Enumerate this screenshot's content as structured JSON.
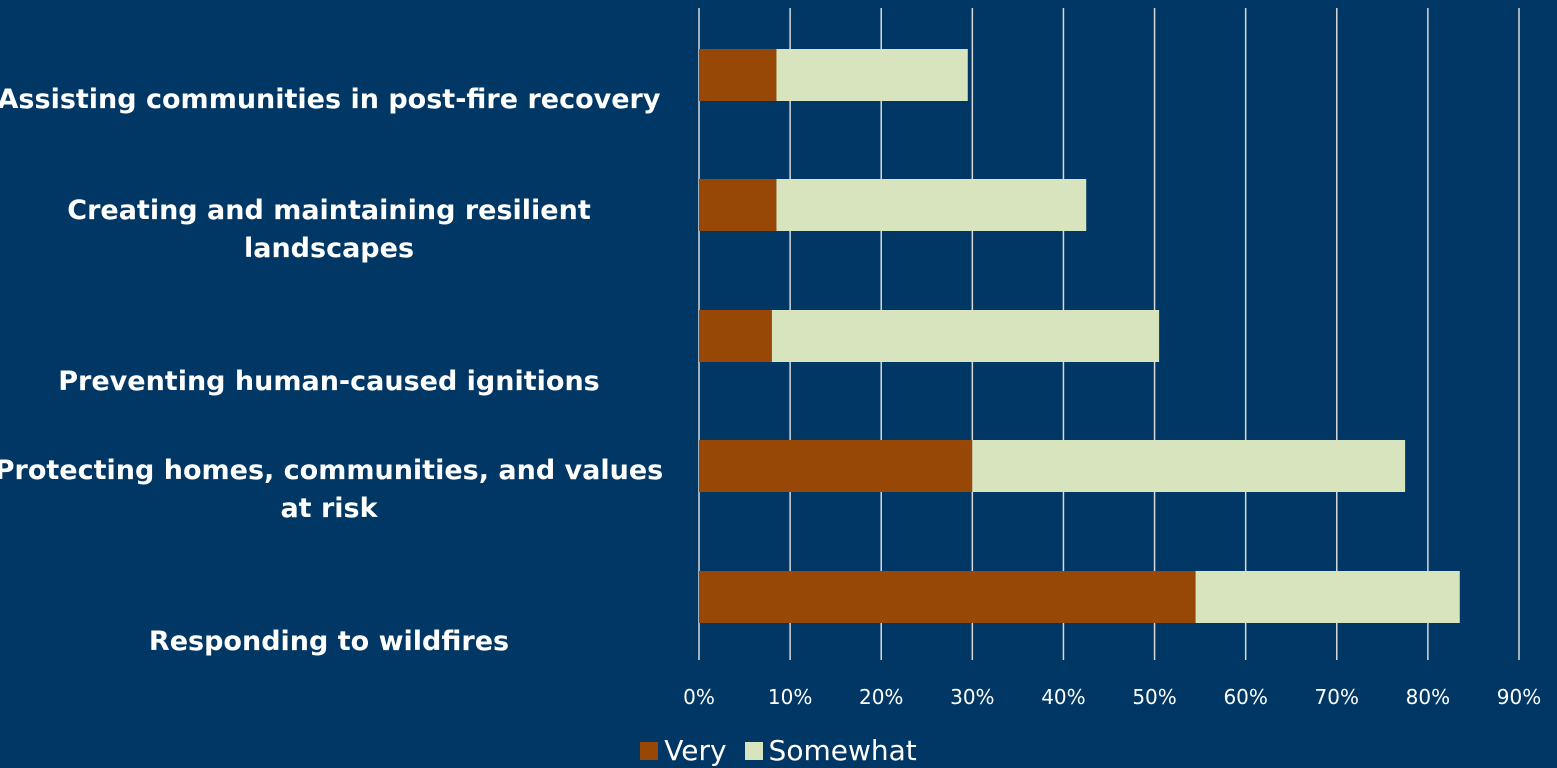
{
  "chart_data": {
    "type": "bar",
    "orientation": "horizontal",
    "stacked": true,
    "categories": [
      "Assisting communities in post-fire recovery",
      "Creating and maintaining resilient landscapes",
      "Preventing human-caused ignitions",
      "Protecting homes, communities, and values at risk",
      "Responding to wildfires"
    ],
    "series": [
      {
        "name": "Very",
        "color": "#974706",
        "values": [
          8.5,
          8.5,
          8,
          30,
          54.5
        ]
      },
      {
        "name": "Somewhat",
        "color": "#d7e4bd",
        "values": [
          21,
          34,
          42.5,
          47.5,
          29
        ]
      }
    ],
    "xlim": [
      0,
      90
    ],
    "x_ticks": [
      "0%",
      "10%",
      "20%",
      "30%",
      "40%",
      "50%",
      "60%",
      "70%",
      "80%",
      "90%"
    ],
    "x_tick_values": [
      0,
      10,
      20,
      30,
      40,
      50,
      60,
      70,
      80,
      90
    ],
    "grid": "vertical",
    "legend_position": "bottom",
    "title": "",
    "xlabel": "",
    "ylabel": "",
    "colors": {
      "background": "#003764",
      "gridline": "#d9d9d9",
      "text": "#ffffff"
    }
  }
}
